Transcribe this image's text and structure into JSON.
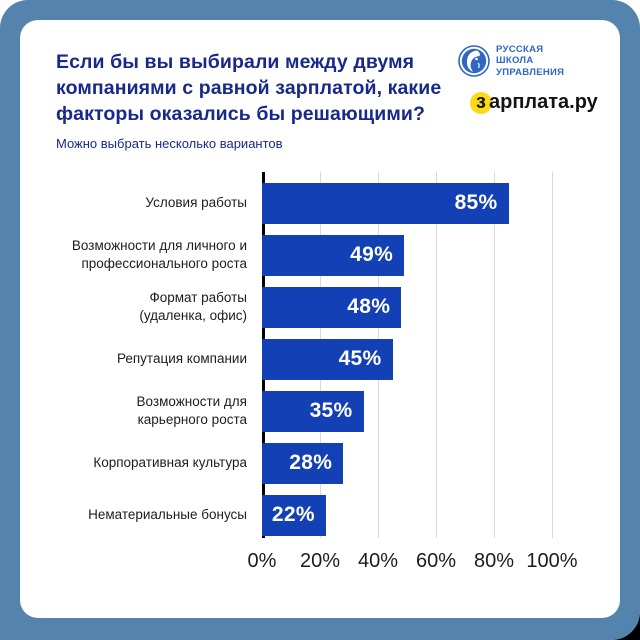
{
  "frame": {
    "background": "#5484ad",
    "card_background": "#ffffff"
  },
  "header": {
    "title": "Если бы вы выбирали между двумя компаниями с равной зарплатой, какие факторы оказались бы решающими?",
    "subtitle": "Можно выбрать несколько вариантов",
    "title_color": "#18298b"
  },
  "logos": {
    "rsu": {
      "lines": [
        "РУССКАЯ",
        "ШКОЛА",
        "УПРАВЛЕНИЯ"
      ],
      "color": "#2e68c0"
    },
    "zarplata": {
      "highlight": "з",
      "rest": "арплата.ру",
      "circle_color": "#ffd912",
      "text_color": "#141414"
    }
  },
  "chart_data": {
    "type": "bar",
    "orientation": "horizontal",
    "title": "Если бы вы выбирали между двумя компаниями с равной зарплатой, какие факторы оказались бы решающими?",
    "subtitle": "Можно выбрать несколько вариантов",
    "categories": [
      "Условия работы",
      "Возможности для личного и\nпрофессионального роста",
      "Формат работы\n(удаленка, офис)",
      "Репутация компании",
      "Возможности для\nкарьерного роста",
      "Корпоративная культура",
      "Нематериальные бонусы"
    ],
    "values": [
      85,
      49,
      48,
      45,
      35,
      28,
      22
    ],
    "value_labels": [
      "85%",
      "49%",
      "48%",
      "45%",
      "35%",
      "28%",
      "22%"
    ],
    "x_ticks": [
      "0%",
      "20%",
      "40%",
      "60%",
      "80%",
      "100%"
    ],
    "xlim": [
      0,
      100
    ],
    "bar_color": "#1340b5",
    "value_label_color": "#ffffff",
    "grid": "vertical-on",
    "legend": "none"
  }
}
